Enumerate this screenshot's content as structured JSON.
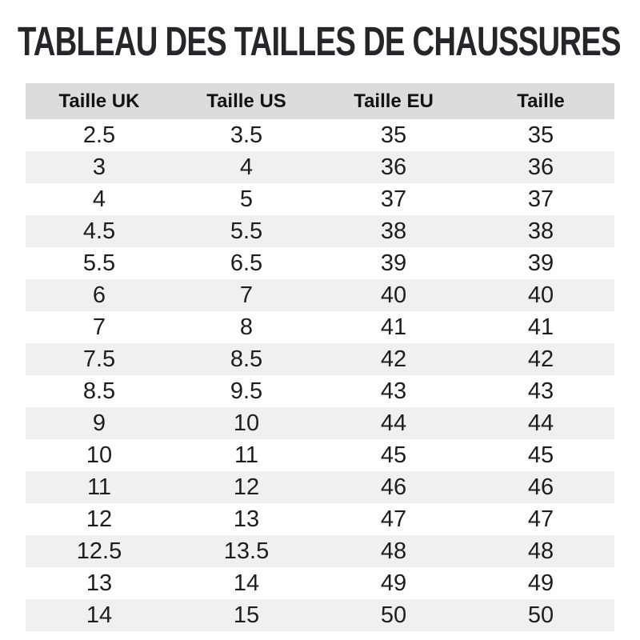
{
  "page": {
    "title": "TABLEAU DES TAILLES DE CHAUSSURES"
  },
  "colors": {
    "header_bg": "#dcdcdc",
    "row_alt_bg": "#f0f0f0",
    "row_bg": "#ffffff",
    "text": "#1d1d1f",
    "title": "#26262a"
  },
  "chart_data": {
    "type": "table",
    "title": "TABLEAU DES TAILLES DE CHAUSSURES",
    "columns": [
      "Taille UK",
      "Taille US",
      "Taille EU",
      "Taille"
    ],
    "rows": [
      [
        "2.5",
        "3.5",
        "35",
        "35"
      ],
      [
        "3",
        "4",
        "36",
        "36"
      ],
      [
        "4",
        "5",
        "37",
        "37"
      ],
      [
        "4.5",
        "5.5",
        "38",
        "38"
      ],
      [
        "5.5",
        "6.5",
        "39",
        "39"
      ],
      [
        "6",
        "7",
        "40",
        "40"
      ],
      [
        "7",
        "8",
        "41",
        "41"
      ],
      [
        "7.5",
        "8.5",
        "42",
        "42"
      ],
      [
        "8.5",
        "9.5",
        "43",
        "43"
      ],
      [
        "9",
        "10",
        "44",
        "44"
      ],
      [
        "10",
        "11",
        "45",
        "45"
      ],
      [
        "11",
        "12",
        "46",
        "46"
      ],
      [
        "12",
        "13",
        "47",
        "47"
      ],
      [
        "12.5",
        "13.5",
        "48",
        "48"
      ],
      [
        "13",
        "14",
        "49",
        "49"
      ],
      [
        "14",
        "15",
        "50",
        "50"
      ]
    ],
    "layout": {
      "columns_equal_width": true,
      "alternating_row_shading": "even rows shaded",
      "alignment": "center"
    }
  }
}
